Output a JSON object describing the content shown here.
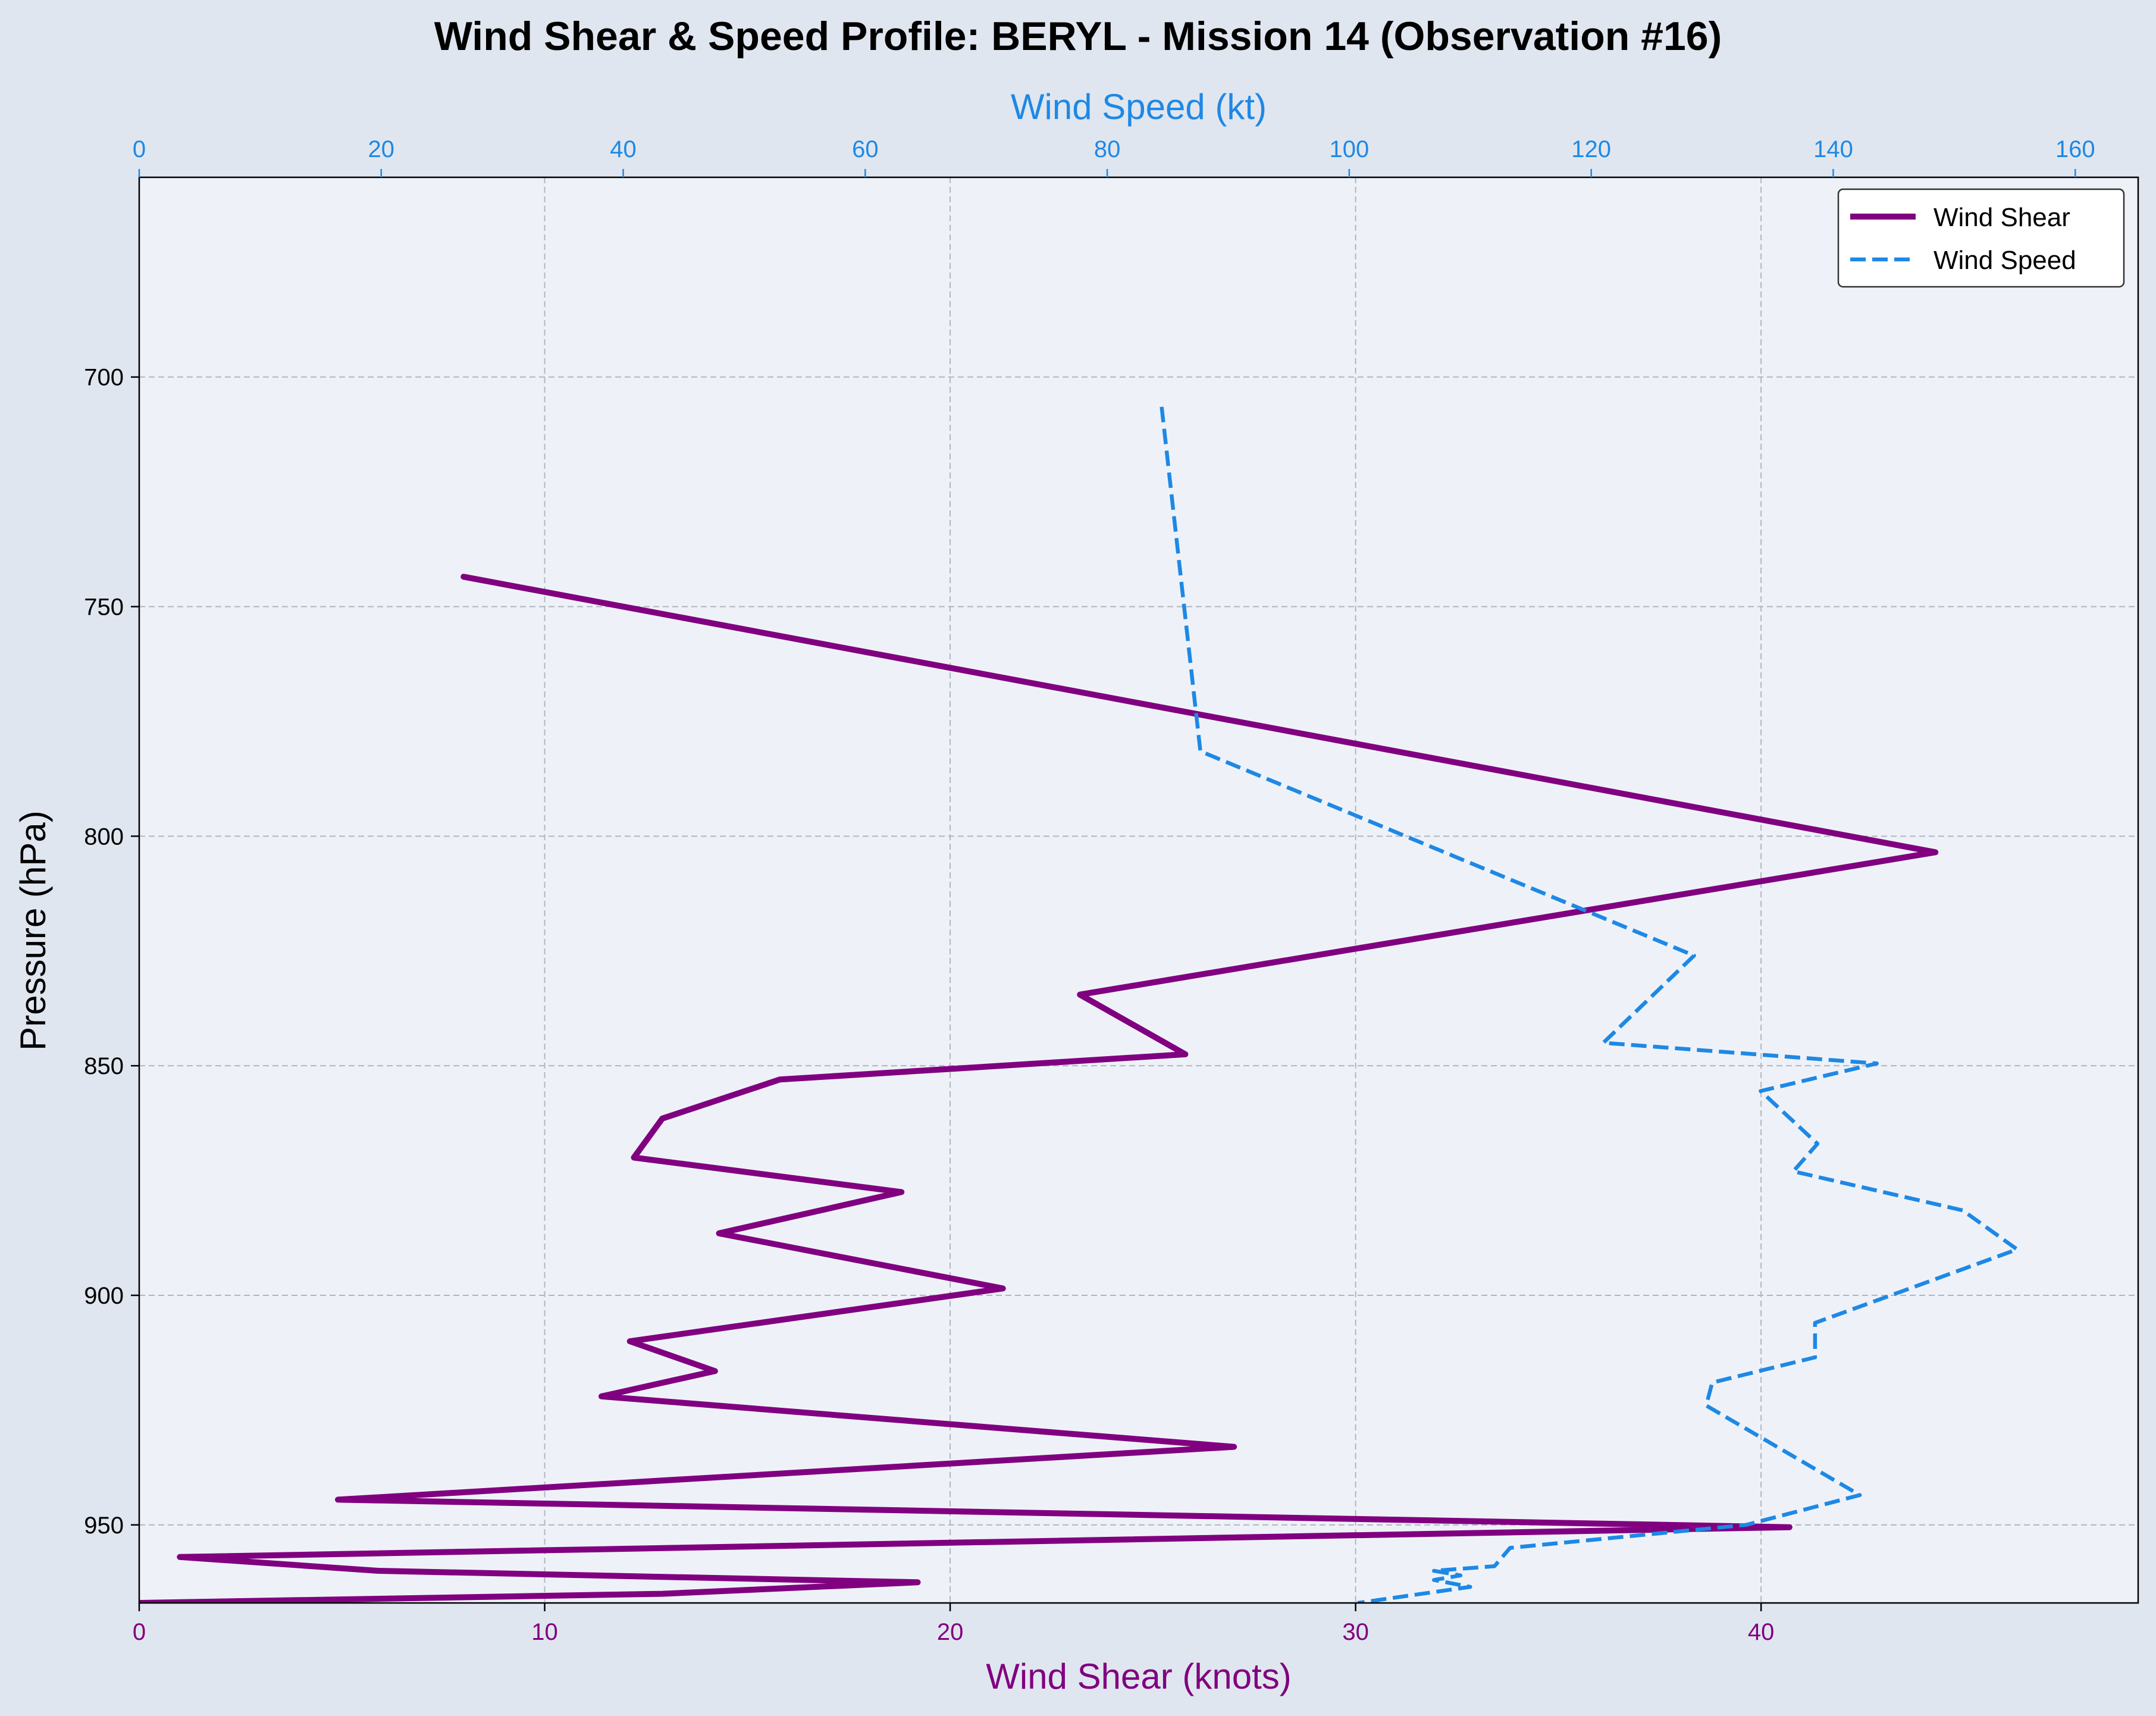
{
  "chart_data": {
    "type": "line",
    "title": "Wind Shear & Speed Profile: BERYL - Mission 14 (Observation #16)",
    "ylabel": "Pressure (hPa)",
    "x_bottom": {
      "label": "Wind Shear (knots)",
      "range": [
        0,
        49.3
      ],
      "ticks": [
        "0",
        "10",
        "20",
        "30",
        "40"
      ],
      "color": "#800080"
    },
    "x_top": {
      "label": "Wind Speed (kt)",
      "range": [
        0,
        165.2
      ],
      "ticks": [
        "0",
        "20",
        "40",
        "60",
        "80",
        "100",
        "120",
        "140",
        "160"
      ],
      "color": "#1e88e5"
    },
    "y_axis": {
      "range": [
        656.5,
        967
      ],
      "inverted": true,
      "ticks": [
        "700",
        "750",
        "800",
        "850",
        "900",
        "950"
      ]
    },
    "grid": true,
    "legend_position": "top-right",
    "series": [
      {
        "name": "Wind Shear",
        "axis": "bottom",
        "style": "solid",
        "color": "#800080",
        "points": [
          [
            8.0,
            743.5
          ],
          [
            44.3,
            803.5
          ],
          [
            23.2,
            834.5
          ],
          [
            25.8,
            847.5
          ],
          [
            15.8,
            853
          ],
          [
            12.9,
            861.5
          ],
          [
            12.2,
            870
          ],
          [
            18.8,
            877.5
          ],
          [
            14.3,
            886.5
          ],
          [
            21.3,
            898.5
          ],
          [
            12.1,
            910
          ],
          [
            14.2,
            916.5
          ],
          [
            11.4,
            922
          ],
          [
            27.0,
            933
          ],
          [
            4.9,
            944.5
          ],
          [
            40.7,
            950.5
          ],
          [
            1.0,
            957
          ],
          [
            5.9,
            960
          ],
          [
            19.2,
            962.5
          ],
          [
            12.9,
            965
          ],
          [
            0,
            967
          ]
        ]
      },
      {
        "name": "Wind Speed",
        "axis": "top",
        "style": "dashed",
        "color": "#1e88e5",
        "points": [
          [
            84.5,
            706.5
          ],
          [
            87.7,
            781.5
          ],
          [
            128.5,
            826
          ],
          [
            121.0,
            845
          ],
          [
            143.6,
            849.5
          ],
          [
            134.0,
            855.5
          ],
          [
            138.7,
            867
          ],
          [
            136.7,
            873
          ],
          [
            150.7,
            881.5
          ],
          [
            155.2,
            890
          ],
          [
            138.5,
            906
          ],
          [
            138.5,
            913.5
          ],
          [
            130.0,
            919
          ],
          [
            129.5,
            924
          ],
          [
            142.2,
            943.5
          ],
          [
            132.8,
            950
          ],
          [
            113.3,
            955
          ],
          [
            112.0,
            959
          ],
          [
            107.0,
            960
          ],
          [
            109.2,
            961
          ],
          [
            107.0,
            962
          ],
          [
            110.0,
            963.5
          ],
          [
            100.7,
            967
          ]
        ]
      }
    ]
  }
}
